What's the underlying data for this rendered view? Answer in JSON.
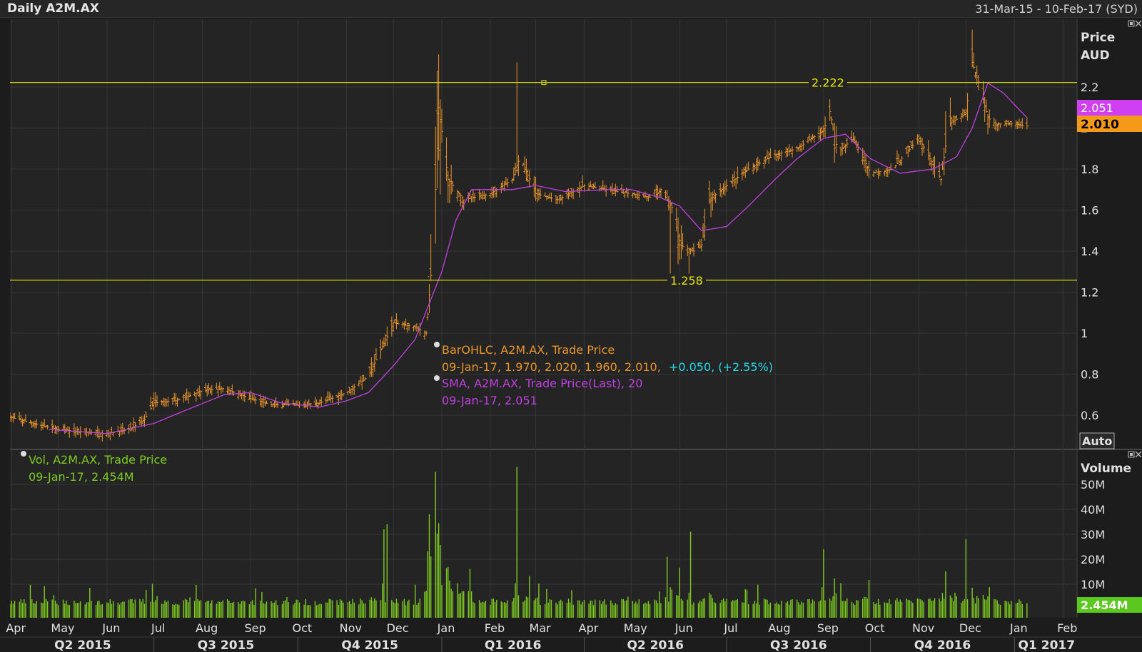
{
  "header": {
    "title": "Daily A2M.AX",
    "date_range": "31-Mar-15 - 10-Feb-17 (SYD)"
  },
  "price_panel": {
    "axis_title_1": "Price",
    "axis_title_2": "AUD",
    "auto_button": "Auto",
    "sma_badge": "2.051",
    "price_badge": "2.010",
    "hline_high": "2.222",
    "hline_low": "1.258",
    "legend_ohlc_title": "BarOHLC, A2M.AX, Trade Price",
    "legend_ohlc_values": "09-Jan-17, 1.970, 2.020, 1.960, 2.010,",
    "legend_ohlc_change": "+0.050, (+2.55%)",
    "legend_sma_title": "SMA, A2M.AX, Trade Price(Last),  20",
    "legend_sma_values": "09-Jan-17, 2.051"
  },
  "volume_panel": {
    "axis_title": "Volume",
    "badge": "2.454M",
    "legend_title": "Vol, A2M.AX, Trade Price",
    "legend_values": "09-Jan-17, 2.454M"
  },
  "colors": {
    "bars": "#e8952a",
    "sma": "#c040e0",
    "volume": "#7ecb20",
    "hline": "#e6e600",
    "change": "#20d8e8",
    "price_badge": "#f59a18",
    "sma_badge": "#d040f0",
    "volume_badge": "#5ac81e"
  },
  "chart_data": [
    {
      "type": "ohlc",
      "title": "Daily A2M.AX",
      "ylabel": "Price AUD",
      "ylim": [
        0.5,
        2.6
      ],
      "y_ticks": [
        0.6,
        0.8,
        1,
        1.2,
        1.4,
        1.6,
        1.8,
        2,
        2.2
      ],
      "y_tick_labels": [
        "0.6",
        "0.8",
        "1",
        "1.2",
        "1.4",
        "1.6",
        "1.8",
        "2",
        "2.2"
      ],
      "x_months": [
        "Apr",
        "May",
        "Jun",
        "Jul",
        "Aug",
        "Sep",
        "Oct",
        "Nov",
        "Dec",
        "Jan",
        "Feb",
        "Mar",
        "Apr",
        "May",
        "Jun",
        "Jul",
        "Aug",
        "Sep",
        "Oct",
        "Nov",
        "Dec",
        "Jan",
        "Feb"
      ],
      "x_quarters": [
        "Q2 2015",
        "Q3 2015",
        "Q4 2015",
        "Q1 2016",
        "Q2 2016",
        "Q3 2016",
        "Q4 2016",
        "Q1 2017"
      ],
      "horizontal_lines": [
        2.222,
        1.258
      ],
      "close_path": [
        [
          "2015-03-31",
          0.59
        ],
        [
          "2015-04-15",
          0.56
        ],
        [
          "2015-05-01",
          0.53
        ],
        [
          "2015-05-15",
          0.52
        ],
        [
          "2015-06-01",
          0.51
        ],
        [
          "2015-06-15",
          0.53
        ],
        [
          "2015-06-25",
          0.58
        ],
        [
          "2015-07-01",
          0.66
        ],
        [
          "2015-07-15",
          0.67
        ],
        [
          "2015-08-01",
          0.72
        ],
        [
          "2015-08-15",
          0.73
        ],
        [
          "2015-09-01",
          0.68
        ],
        [
          "2015-09-15",
          0.65
        ],
        [
          "2015-10-01",
          0.65
        ],
        [
          "2015-10-15",
          0.66
        ],
        [
          "2015-11-01",
          0.71
        ],
        [
          "2015-11-15",
          0.79
        ],
        [
          "2015-11-25",
          0.95
        ],
        [
          "2015-12-01",
          1.05
        ],
        [
          "2015-12-15",
          1.03
        ],
        [
          "2015-12-22",
          1.0
        ],
        [
          "2015-12-25",
          1.28
        ],
        [
          "2015-12-28",
          1.7
        ],
        [
          "2015-12-30",
          2.1
        ],
        [
          "2016-01-05",
          1.75
        ],
        [
          "2016-01-15",
          1.65
        ],
        [
          "2016-02-01",
          1.68
        ],
        [
          "2016-02-15",
          1.75
        ],
        [
          "2016-02-20",
          1.86
        ],
        [
          "2016-03-01",
          1.68
        ],
        [
          "2016-03-15",
          1.65
        ],
        [
          "2016-04-01",
          1.72
        ],
        [
          "2016-04-15",
          1.7
        ],
        [
          "2016-05-01",
          1.68
        ],
        [
          "2016-05-15",
          1.66
        ],
        [
          "2016-05-20",
          1.7
        ],
        [
          "2016-05-28",
          1.6
        ],
        [
          "2016-06-01",
          1.43
        ],
        [
          "2016-06-10",
          1.4
        ],
        [
          "2016-06-15",
          1.43
        ],
        [
          "2016-06-20",
          1.65
        ],
        [
          "2016-07-01",
          1.72
        ],
        [
          "2016-07-15",
          1.8
        ],
        [
          "2016-08-01",
          1.87
        ],
        [
          "2016-08-15",
          1.9
        ],
        [
          "2016-09-01",
          1.99
        ],
        [
          "2016-09-05",
          2.08
        ],
        [
          "2016-09-10",
          1.88
        ],
        [
          "2016-09-20",
          1.95
        ],
        [
          "2016-10-01",
          1.78
        ],
        [
          "2016-10-15",
          1.8
        ],
        [
          "2016-11-01",
          1.95
        ],
        [
          "2016-11-15",
          1.75
        ],
        [
          "2016-11-20",
          2.02
        ],
        [
          "2016-12-01",
          2.07
        ],
        [
          "2016-12-05",
          2.32
        ],
        [
          "2016-12-10",
          2.2
        ],
        [
          "2016-12-15",
          2.05
        ],
        [
          "2016-12-20",
          2.02
        ],
        [
          "2017-01-01",
          2.02
        ],
        [
          "2017-01-09",
          2.01
        ]
      ],
      "sma_20_path": [
        [
          "2015-04-25",
          0.53
        ],
        [
          "2015-06-01",
          0.51
        ],
        [
          "2015-07-01",
          0.56
        ],
        [
          "2015-07-20",
          0.62
        ],
        [
          "2015-08-15",
          0.7
        ],
        [
          "2015-09-01",
          0.71
        ],
        [
          "2015-09-20",
          0.66
        ],
        [
          "2015-10-15",
          0.64
        ],
        [
          "2015-11-01",
          0.67
        ],
        [
          "2015-11-15",
          0.71
        ],
        [
          "2015-12-01",
          0.84
        ],
        [
          "2015-12-15",
          0.97
        ],
        [
          "2016-01-01",
          1.3
        ],
        [
          "2016-01-10",
          1.55
        ],
        [
          "2016-01-20",
          1.7
        ],
        [
          "2016-02-01",
          1.7
        ],
        [
          "2016-02-15",
          1.7
        ],
        [
          "2016-03-01",
          1.72
        ],
        [
          "2016-03-20",
          1.69
        ],
        [
          "2016-04-15",
          1.7
        ],
        [
          "2016-05-01",
          1.7
        ],
        [
          "2016-05-20",
          1.66
        ],
        [
          "2016-06-01",
          1.62
        ],
        [
          "2016-06-15",
          1.5
        ],
        [
          "2016-07-01",
          1.52
        ],
        [
          "2016-07-15",
          1.62
        ],
        [
          "2016-08-01",
          1.75
        ],
        [
          "2016-08-15",
          1.85
        ],
        [
          "2016-09-01",
          1.95
        ],
        [
          "2016-09-15",
          1.97
        ],
        [
          "2016-10-01",
          1.85
        ],
        [
          "2016-10-20",
          1.78
        ],
        [
          "2016-11-10",
          1.8
        ],
        [
          "2016-11-25",
          1.86
        ],
        [
          "2016-12-05",
          2.0
        ],
        [
          "2016-12-15",
          2.22
        ],
        [
          "2016-12-25",
          2.17
        ],
        [
          "2017-01-09",
          2.05
        ]
      ],
      "last": {
        "date": "09-Jan-17",
        "open": 1.97,
        "high": 2.02,
        "low": 1.96,
        "close": 2.01,
        "change": 0.05,
        "change_pct": 2.55,
        "sma20": 2.051
      }
    },
    {
      "type": "bar",
      "title": "Vol, A2M.AX, Trade Price",
      "ylabel": "Volume",
      "ylim": [
        0,
        57000000
      ],
      "y_ticks": [
        10000000,
        20000000,
        30000000,
        40000000,
        50000000
      ],
      "y_tick_labels": [
        "10M",
        "20M",
        "30M",
        "40M",
        "50M"
      ],
      "notable_volumes": [
        [
          "2015-11-25",
          32000000
        ],
        [
          "2015-11-27",
          34000000
        ],
        [
          "2015-12-24",
          38000000
        ],
        [
          "2015-12-28",
          55000000
        ],
        [
          "2016-02-18",
          57000000
        ],
        [
          "2016-06-08",
          31000000
        ],
        [
          "2016-05-24",
          21000000
        ],
        [
          "2016-09-01",
          24000000
        ],
        [
          "2016-12-01",
          28000000
        ]
      ],
      "last": {
        "date": "09-Jan-17",
        "volume": "2.454M"
      }
    }
  ]
}
